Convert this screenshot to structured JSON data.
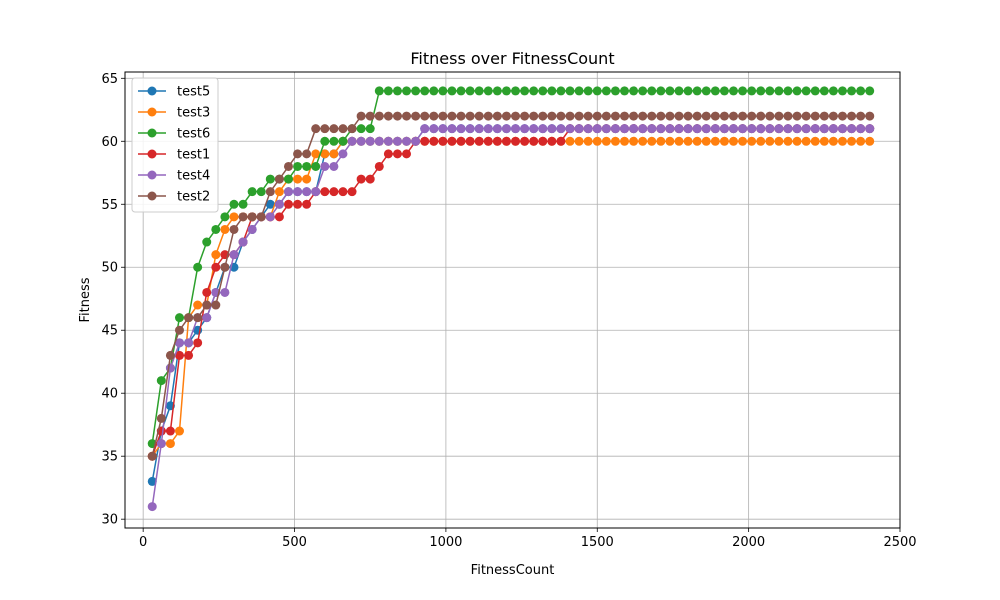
{
  "chart_data": {
    "type": "line",
    "title": "Fitness over FitnessCount",
    "xlabel": "FitnessCount",
    "ylabel": "Fitness",
    "xlim": [
      -60,
      2500
    ],
    "ylim": [
      29.3,
      65.5
    ],
    "xticks": [
      0,
      500,
      1000,
      1500,
      2000,
      2500
    ],
    "yticks": [
      30,
      35,
      40,
      45,
      50,
      55,
      60,
      65
    ],
    "grid": true,
    "legend_position": "top-left",
    "x": [
      30,
      60,
      90,
      120,
      150,
      180,
      210,
      240,
      270,
      300,
      330,
      360,
      390,
      420,
      450,
      480,
      510,
      540,
      570,
      600,
      630,
      660,
      690,
      720,
      750,
      780,
      810,
      840,
      870,
      900,
      930,
      960,
      990,
      1020,
      1050,
      1080,
      1110,
      1140,
      1170,
      1200,
      1230,
      1260,
      1290,
      1320,
      1350,
      1380,
      1410,
      1440,
      1470,
      1500,
      1530,
      1560,
      1590,
      1620,
      1650,
      1680,
      1710,
      1740,
      1770,
      1800,
      1830,
      1860,
      1890,
      1920,
      1950,
      1980,
      2010,
      2040,
      2070,
      2100,
      2130,
      2160,
      2190,
      2220,
      2250,
      2280,
      2310,
      2340,
      2370,
      2400
    ],
    "series": [
      {
        "name": "test5",
        "color": "#1f77b4",
        "values": [
          33,
          37,
          39,
          44,
          44,
          45,
          46,
          48,
          50,
          50,
          52,
          53,
          54,
          55,
          55,
          56,
          56,
          56,
          56,
          59,
          59,
          60,
          60,
          60,
          60,
          60,
          60,
          60,
          60,
          60,
          61,
          61,
          61,
          61,
          61,
          61,
          61,
          61,
          61,
          61,
          61,
          61,
          61,
          61,
          61,
          61,
          61,
          61,
          61,
          61,
          61,
          61,
          61,
          61,
          61,
          61,
          61,
          61,
          61,
          61,
          61,
          61,
          61,
          61,
          61,
          61,
          61,
          61,
          61,
          61,
          61,
          61,
          61,
          61,
          61,
          61,
          61,
          61,
          61,
          61
        ]
      },
      {
        "name": "test3",
        "color": "#ff7f0e",
        "values": [
          35,
          36,
          36,
          37,
          46,
          47,
          47,
          51,
          53,
          54,
          54,
          54,
          54,
          54,
          56,
          57,
          57,
          57,
          59,
          59,
          59,
          60,
          60,
          60,
          60,
          60,
          60,
          60,
          60,
          60,
          60,
          60,
          60,
          60,
          60,
          60,
          60,
          60,
          60,
          60,
          60,
          60,
          60,
          60,
          60,
          60,
          60,
          60,
          60,
          60,
          60,
          60,
          60,
          60,
          60,
          60,
          60,
          60,
          60,
          60,
          60,
          60,
          60,
          60,
          60,
          60,
          60,
          60,
          60,
          60,
          60,
          60,
          60,
          60,
          60,
          60,
          60,
          60,
          60,
          60
        ]
      },
      {
        "name": "test6",
        "color": "#2ca02c",
        "values": [
          36,
          41,
          42,
          46,
          46,
          50,
          52,
          53,
          54,
          55,
          55,
          56,
          56,
          57,
          57,
          57,
          58,
          58,
          58,
          60,
          60,
          60,
          61,
          61,
          61,
          64,
          64,
          64,
          64,
          64,
          64,
          64,
          64,
          64,
          64,
          64,
          64,
          64,
          64,
          64,
          64,
          64,
          64,
          64,
          64,
          64,
          64,
          64,
          64,
          64,
          64,
          64,
          64,
          64,
          64,
          64,
          64,
          64,
          64,
          64,
          64,
          64,
          64,
          64,
          64,
          64,
          64,
          64,
          64,
          64,
          64,
          64,
          64,
          64,
          64,
          64,
          64,
          64,
          64,
          64
        ]
      },
      {
        "name": "test1",
        "color": "#d62728",
        "values": [
          35,
          37,
          37,
          43,
          43,
          44,
          48,
          50,
          51,
          51,
          52,
          54,
          54,
          54,
          54,
          55,
          55,
          55,
          56,
          56,
          56,
          56,
          56,
          57,
          57,
          58,
          59,
          59,
          59,
          60,
          60,
          60,
          60,
          60,
          60,
          60,
          60,
          60,
          60,
          60,
          60,
          60,
          60,
          60,
          60,
          60,
          61,
          61,
          61,
          61,
          61,
          61,
          61,
          61,
          61,
          61,
          61,
          61,
          61,
          61,
          61,
          61,
          61,
          61,
          61,
          61,
          61,
          61,
          61,
          61,
          61,
          61,
          61,
          61,
          61,
          61,
          61,
          61,
          61,
          61
        ]
      },
      {
        "name": "test4",
        "color": "#9467bd",
        "values": [
          31,
          36,
          42,
          44,
          44,
          46,
          46,
          48,
          48,
          51,
          52,
          53,
          54,
          54,
          55,
          56,
          56,
          56,
          56,
          58,
          58,
          59,
          60,
          60,
          60,
          60,
          60,
          60,
          60,
          60,
          61,
          61,
          61,
          61,
          61,
          61,
          61,
          61,
          61,
          61,
          61,
          61,
          61,
          61,
          61,
          61,
          61,
          61,
          61,
          61,
          61,
          61,
          61,
          61,
          61,
          61,
          61,
          61,
          61,
          61,
          61,
          61,
          61,
          61,
          61,
          61,
          61,
          61,
          61,
          61,
          61,
          61,
          61,
          61,
          61,
          61,
          61,
          61,
          61,
          61
        ]
      },
      {
        "name": "test2",
        "color": "#8c564b",
        "values": [
          35,
          38,
          43,
          45,
          46,
          46,
          47,
          47,
          50,
          53,
          54,
          54,
          54,
          56,
          57,
          58,
          59,
          59,
          61,
          61,
          61,
          61,
          61,
          62,
          62,
          62,
          62,
          62,
          62,
          62,
          62,
          62,
          62,
          62,
          62,
          62,
          62,
          62,
          62,
          62,
          62,
          62,
          62,
          62,
          62,
          62,
          62,
          62,
          62,
          62,
          62,
          62,
          62,
          62,
          62,
          62,
          62,
          62,
          62,
          62,
          62,
          62,
          62,
          62,
          62,
          62,
          62,
          62,
          62,
          62,
          62,
          62,
          62,
          62,
          62,
          62,
          62,
          62,
          62,
          62
        ]
      }
    ]
  }
}
